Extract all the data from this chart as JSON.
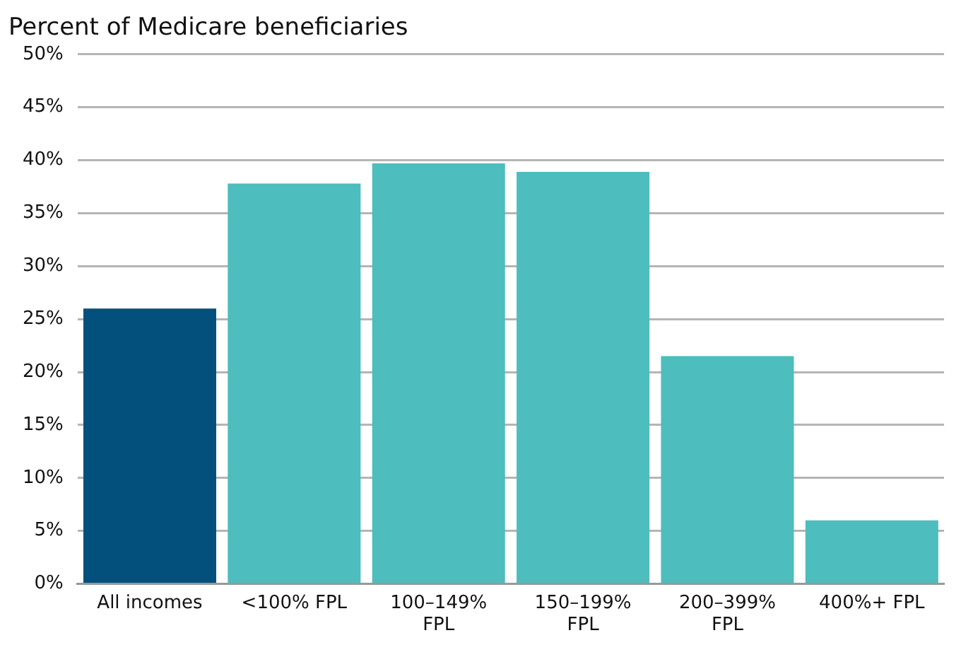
{
  "chart_data": {
    "type": "bar",
    "title": "Percent of Medicare beneficiaries",
    "categories": [
      "All incomes",
      "<100% FPL",
      "100–149% FPL",
      "150–199% FPL",
      "200–399% FPL",
      "400%+ FPL"
    ],
    "values": [
      26.0,
      37.8,
      39.7,
      38.9,
      21.5,
      6.0
    ],
    "colors": [
      "#04507c",
      "#4dbdbd",
      "#4dbdbd",
      "#4dbdbd",
      "#4dbdbd",
      "#4dbdbd"
    ],
    "ylim": [
      0,
      50
    ],
    "yticks": [
      {
        "value": 0,
        "label": "0%"
      },
      {
        "value": 5,
        "label": "5%"
      },
      {
        "value": 10,
        "label": "10%"
      },
      {
        "value": 15,
        "label": "15%"
      },
      {
        "value": 20,
        "label": "20%"
      },
      {
        "value": 25,
        "label": "25%"
      },
      {
        "value": 30,
        "label": "30%"
      },
      {
        "value": 35,
        "label": "35%"
      },
      {
        "value": 40,
        "label": "40%"
      },
      {
        "value": 45,
        "label": "45%"
      },
      {
        "value": 50,
        "label": "50%"
      }
    ],
    "grid": "y",
    "legend": false
  }
}
